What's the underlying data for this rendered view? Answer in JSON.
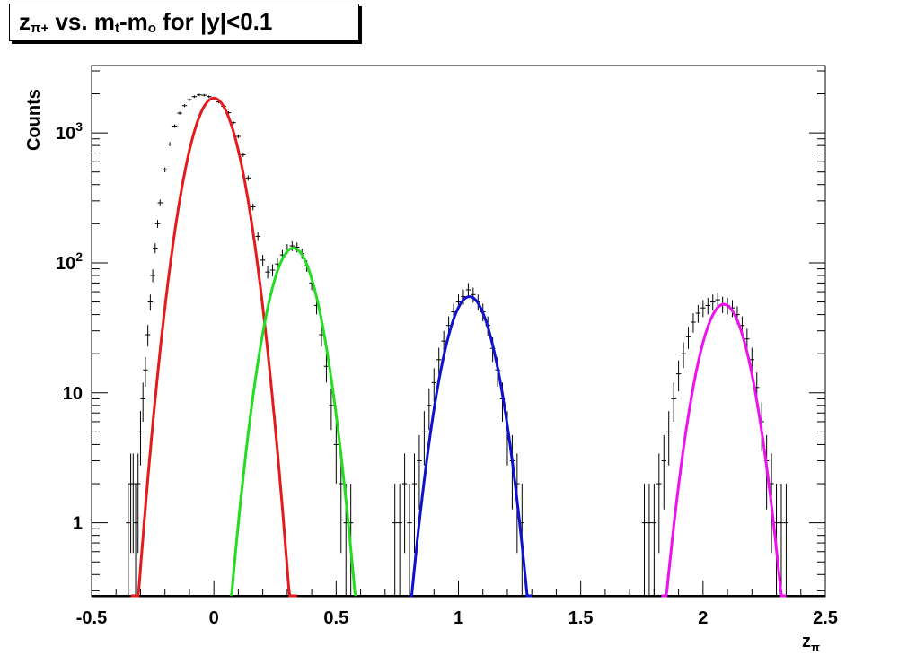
{
  "chart_data": {
    "type": "line",
    "title": {
      "base": "z",
      "base_sub": "π+",
      "mid": " vs. m",
      "mid_sub": "t",
      "dash": "-m",
      "dash_sub": "o",
      "tail": " for |y|<0.1"
    },
    "xlabel": {
      "base": "z",
      "sub": "π"
    },
    "ylabel": "Counts",
    "xlim": [
      -0.5,
      2.5
    ],
    "ylim": [
      0.27,
      3300
    ],
    "yscale": "log",
    "x_ticks": [
      "-0.5",
      "0",
      "0.5",
      "1",
      "1.5",
      "2",
      "2.5"
    ],
    "y_ticks": [
      {
        "value": 1,
        "label": "1"
      },
      {
        "value": 10,
        "label": "10"
      },
      {
        "value": 100,
        "label": "10",
        "sup": "2"
      },
      {
        "value": 1000,
        "label": "10",
        "sup": "3"
      }
    ],
    "histogram": {
      "name": "data",
      "color": "#000000",
      "points": [
        [
          -0.35,
          1
        ],
        [
          -0.34,
          2
        ],
        [
          -0.33,
          2
        ],
        [
          -0.32,
          1
        ],
        [
          -0.31,
          2
        ],
        [
          -0.3,
          5
        ],
        [
          -0.29,
          9
        ],
        [
          -0.28,
          15
        ],
        [
          -0.27,
          28
        ],
        [
          -0.26,
          50
        ],
        [
          -0.25,
          80
        ],
        [
          -0.24,
          130
        ],
        [
          -0.23,
          200
        ],
        [
          -0.22,
          290
        ],
        [
          -0.2,
          520
        ],
        [
          -0.18,
          820
        ],
        [
          -0.16,
          1130
        ],
        [
          -0.14,
          1420
        ],
        [
          -0.12,
          1620
        ],
        [
          -0.1,
          1800
        ],
        [
          -0.08,
          1900
        ],
        [
          -0.06,
          1960
        ],
        [
          -0.04,
          1950
        ],
        [
          -0.02,
          1900
        ],
        [
          0.0,
          1820
        ],
        [
          0.02,
          1730
        ],
        [
          0.04,
          1600
        ],
        [
          0.06,
          1430
        ],
        [
          0.08,
          1200
        ],
        [
          0.1,
          940
        ],
        [
          0.12,
          680
        ],
        [
          0.14,
          450
        ],
        [
          0.16,
          270
        ],
        [
          0.18,
          160
        ],
        [
          0.2,
          105
        ],
        [
          0.22,
          85
        ],
        [
          0.24,
          88
        ],
        [
          0.26,
          98
        ],
        [
          0.28,
          115
        ],
        [
          0.3,
          128
        ],
        [
          0.32,
          135
        ],
        [
          0.34,
          132
        ],
        [
          0.36,
          118
        ],
        [
          0.38,
          95
        ],
        [
          0.4,
          70
        ],
        [
          0.42,
          47
        ],
        [
          0.44,
          28
        ],
        [
          0.46,
          16
        ],
        [
          0.48,
          8
        ],
        [
          0.5,
          4
        ],
        [
          0.52,
          2
        ],
        [
          0.54,
          1
        ],
        [
          0.56,
          1
        ],
        [
          0.74,
          1
        ],
        [
          0.76,
          1
        ],
        [
          0.78,
          2
        ],
        [
          0.8,
          1
        ],
        [
          0.82,
          2
        ],
        [
          0.84,
          3
        ],
        [
          0.86,
          5
        ],
        [
          0.88,
          8
        ],
        [
          0.9,
          12
        ],
        [
          0.92,
          18
        ],
        [
          0.94,
          25
        ],
        [
          0.96,
          33
        ],
        [
          0.98,
          42
        ],
        [
          1.0,
          50
        ],
        [
          1.02,
          55
        ],
        [
          1.04,
          62
        ],
        [
          1.06,
          57
        ],
        [
          1.08,
          50
        ],
        [
          1.1,
          42
        ],
        [
          1.12,
          33
        ],
        [
          1.14,
          22
        ],
        [
          1.16,
          15
        ],
        [
          1.18,
          9
        ],
        [
          1.2,
          5
        ],
        [
          1.22,
          3
        ],
        [
          1.24,
          2
        ],
        [
          1.26,
          1
        ],
        [
          1.76,
          1
        ],
        [
          1.78,
          1
        ],
        [
          1.8,
          1
        ],
        [
          1.82,
          2
        ],
        [
          1.84,
          3
        ],
        [
          1.86,
          5
        ],
        [
          1.88,
          9
        ],
        [
          1.9,
          14
        ],
        [
          1.92,
          20
        ],
        [
          1.94,
          27
        ],
        [
          1.96,
          35
        ],
        [
          1.98,
          41
        ],
        [
          2.0,
          45
        ],
        [
          2.02,
          47
        ],
        [
          2.04,
          50
        ],
        [
          2.06,
          52
        ],
        [
          2.08,
          48
        ],
        [
          2.1,
          47
        ],
        [
          2.12,
          45
        ],
        [
          2.14,
          40
        ],
        [
          2.16,
          33
        ],
        [
          2.18,
          26
        ],
        [
          2.2,
          18
        ],
        [
          2.22,
          11
        ],
        [
          2.24,
          6
        ],
        [
          2.26,
          3
        ],
        [
          2.28,
          2
        ],
        [
          2.3,
          1
        ],
        [
          2.32,
          1
        ],
        [
          2.34,
          1
        ]
      ]
    },
    "fits": [
      {
        "name": "fit-0",
        "color": "#e41a1c",
        "peak": 1850,
        "mu": 0.0,
        "sigma": 0.0735,
        "xmin": -0.34,
        "xmax": 0.34
      },
      {
        "name": "fit-1",
        "color": "#22dd22",
        "peak": 130,
        "mu": 0.325,
        "sigma": 0.072,
        "xmin": 0.07,
        "xmax": 0.58
      },
      {
        "name": "fit-2",
        "color": "#1010d0",
        "peak": 55,
        "mu": 1.045,
        "sigma": 0.0725,
        "xmin": 0.8,
        "xmax": 1.3
      },
      {
        "name": "fit-3",
        "color": "#ee11ee",
        "peak": 48,
        "mu": 2.085,
        "sigma": 0.073,
        "xmin": 1.83,
        "xmax": 2.34
      }
    ]
  }
}
